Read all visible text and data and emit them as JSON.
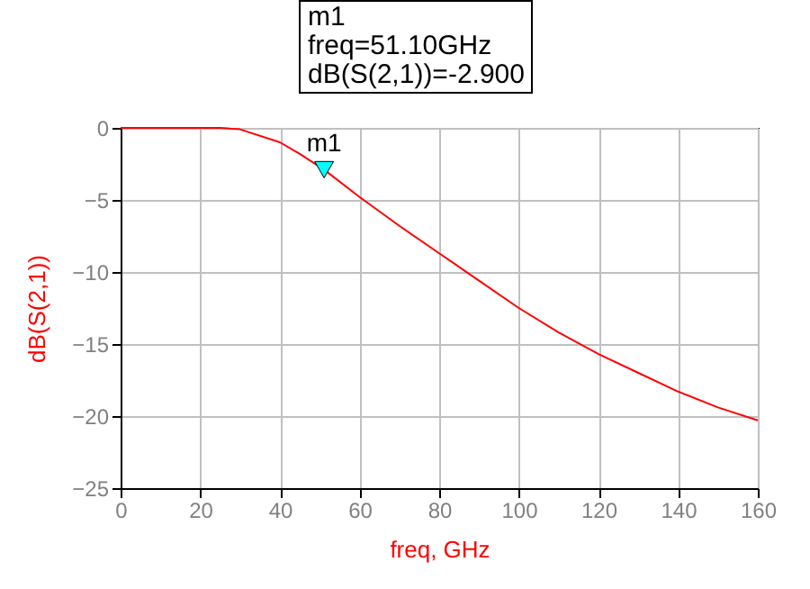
{
  "chart_data": {
    "type": "line",
    "xlabel": "freq, GHz",
    "ylabel": "dB(S(2,1))",
    "annotations": [
      "m1",
      "freq=51.10GHz",
      "dB(S(2,1))=-2.900"
    ],
    "xlim": [
      0,
      160
    ],
    "xticks": [
      0,
      20,
      40,
      60,
      80,
      100,
      120,
      140,
      160
    ],
    "ylim": [
      -25,
      0
    ],
    "yticks": [
      -25,
      -20,
      -15,
      -10,
      -5,
      0
    ],
    "grid": true,
    "series": [
      {
        "color": "#ff0000",
        "x": [
          0,
          20,
          25,
          30,
          40,
          45,
          51.1,
          60,
          70,
          80,
          90,
          100,
          110,
          120,
          130,
          140,
          150,
          160
        ],
        "values": [
          0,
          0,
          0,
          -0.1,
          -1.0,
          -1.8,
          -2.9,
          -4.8,
          -6.8,
          -8.7,
          -10.6,
          -12.5,
          -14.2,
          -15.7,
          -17.0,
          -18.3,
          -19.4,
          -20.3
        ]
      },
      {
        "type": "scatter",
        "name": "m1",
        "color": "#00ffff",
        "marker": "triangle",
        "x": [
          51.1
        ],
        "values": [
          -2.9
        ]
      }
    ]
  }
}
